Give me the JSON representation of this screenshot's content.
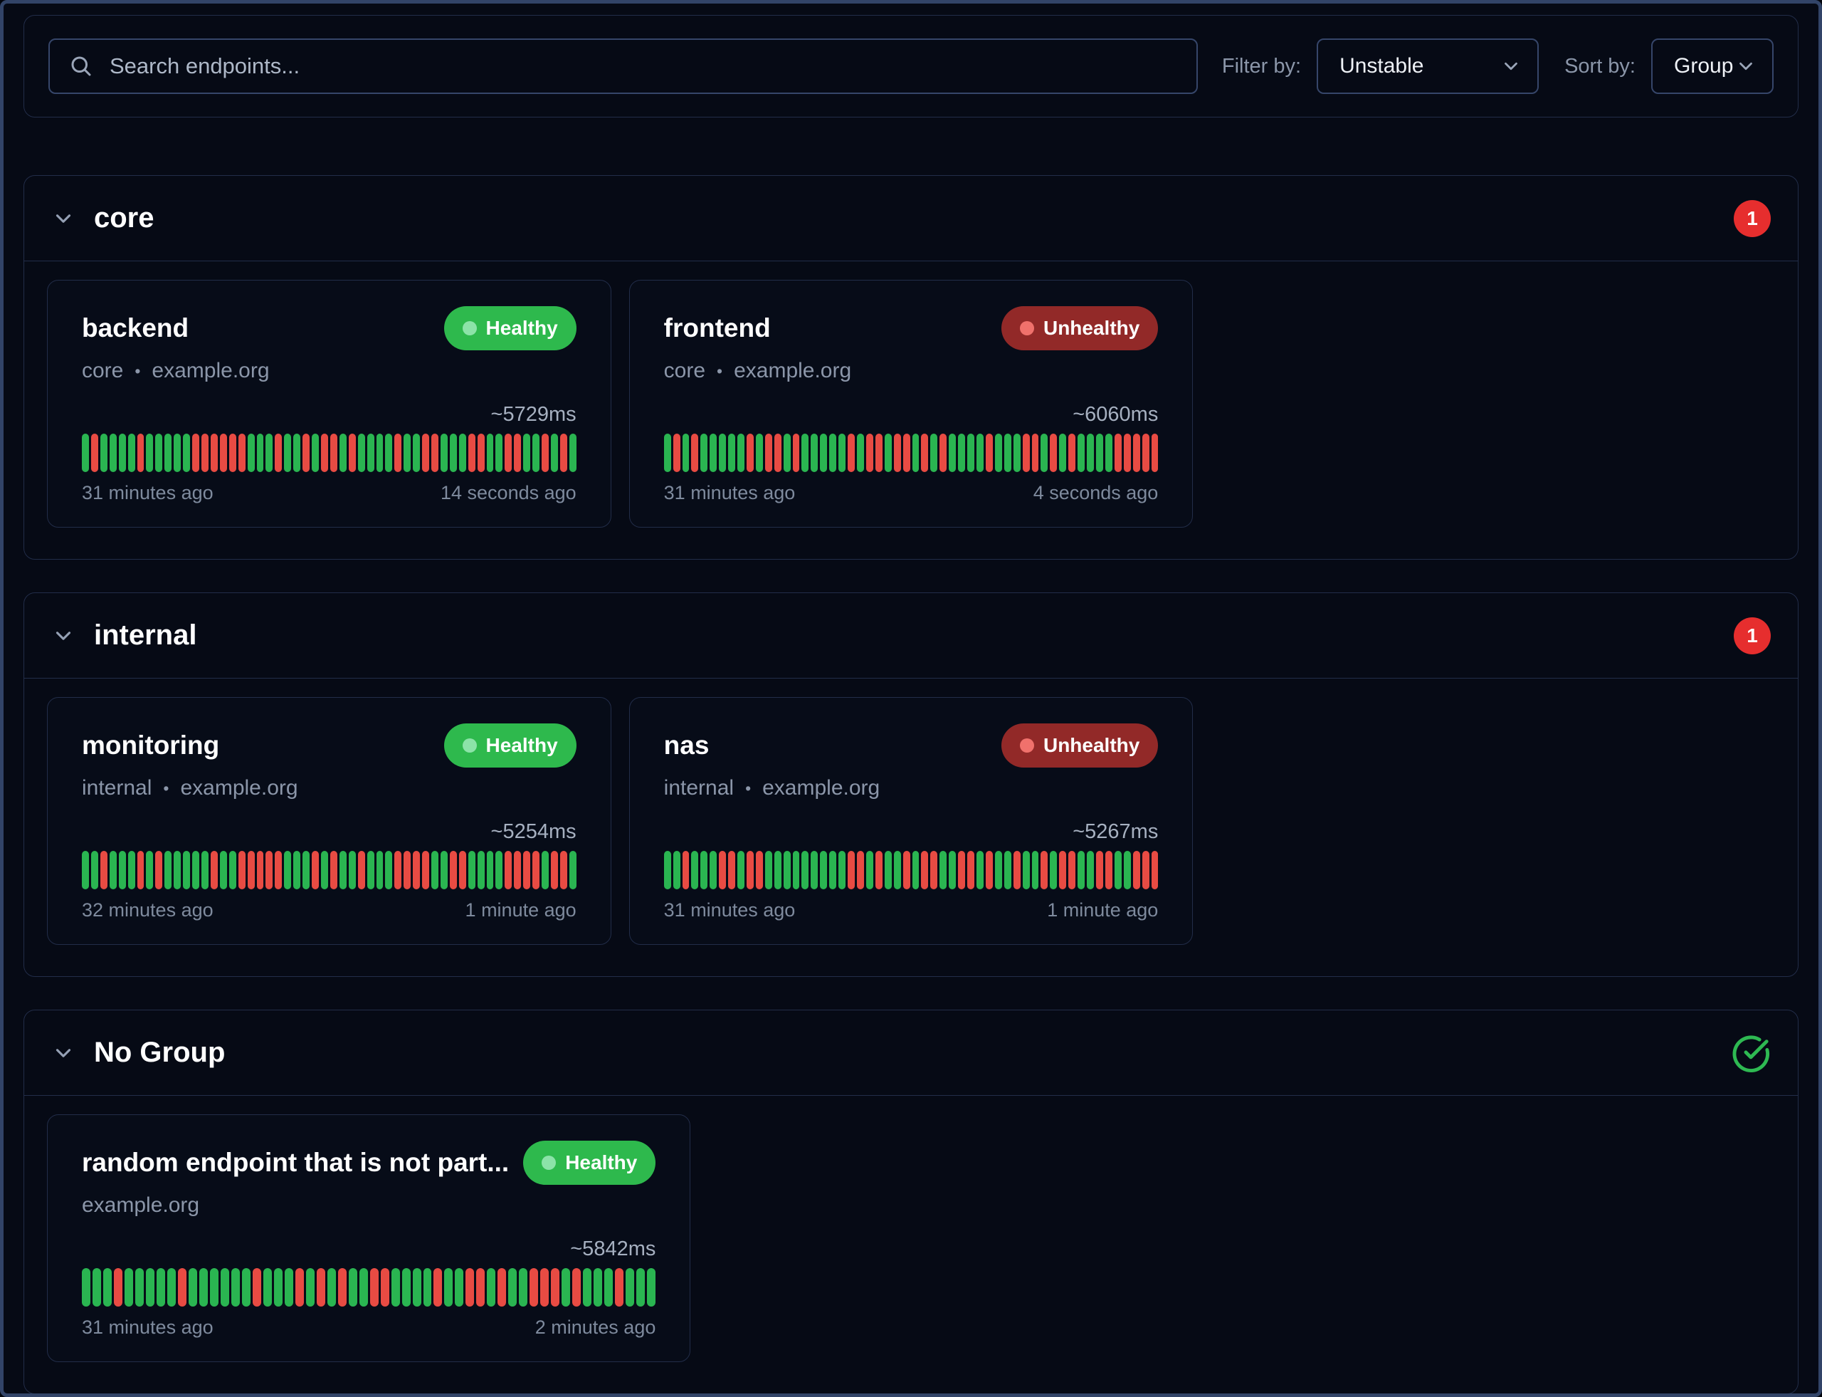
{
  "toolbar": {
    "search_placeholder": "Search endpoints...",
    "filter_label": "Filter by:",
    "filter_value": "Unstable",
    "sort_label": "Sort by:",
    "sort_value": "Group"
  },
  "ui": {
    "separator": "•"
  },
  "colors": {
    "bar_green": "#2ab551",
    "bar_red": "#e84b43",
    "healthy_badge": "#2eb94d",
    "healthy_dot": "#8ce3a8",
    "unhealthy_badge": "#922928",
    "unhealthy_dot": "#f0716c",
    "count_badge": "#e62e2e",
    "check_icon": "#2eb952"
  },
  "groups": [
    {
      "name": "core",
      "status": {
        "type": "count",
        "value": "1"
      },
      "endpoints": [
        {
          "name": "backend",
          "status": "Healthy",
          "group": "core",
          "host": "example.org",
          "response_time": "~5729ms",
          "oldest": "31 minutes ago",
          "newest": "14 seconds ago",
          "bars": "GRGGGGRGGGGGRRRRRRGGGRGGRGRRGRGGGGRGGRRGGGRRGGRRGGRGRG"
        },
        {
          "name": "frontend",
          "status": "Unhealthy",
          "group": "core",
          "host": "example.org",
          "response_time": "~6060ms",
          "oldest": "31 minutes ago",
          "newest": "4 seconds ago",
          "bars": "GRGRGGGGGRGRRGRGGGGGRGRRGRRGRGRGGGGRGGGRRGRGRGGGGRRRRR"
        }
      ]
    },
    {
      "name": "internal",
      "status": {
        "type": "count",
        "value": "1"
      },
      "endpoints": [
        {
          "name": "monitoring",
          "status": "Healthy",
          "group": "internal",
          "host": "example.org",
          "response_time": "~5254ms",
          "oldest": "32 minutes ago",
          "newest": "1 minute ago",
          "bars": "GGRGGGRGRGGGGGRGGRRRRRGGGRGRGGRGGGRRRRGGRRGGGGRRRRGRRG"
        },
        {
          "name": "nas",
          "status": "Unhealthy",
          "group": "internal",
          "host": "example.org",
          "response_time": "~5267ms",
          "oldest": "31 minutes ago",
          "newest": "1 minute ago",
          "bars": "GGRGGGRRGRRGGGGGGGGGRRGRGGRGRRGGRRGRGGRGGRGRRGGRRGGRRR"
        }
      ]
    },
    {
      "name": "No Group",
      "status": {
        "type": "healthy"
      },
      "endpoints": [
        {
          "name": "random endpoint that is not part...",
          "status": "Healthy",
          "group": "",
          "host": "example.org",
          "response_time": "~5842ms",
          "oldest": "31 minutes ago",
          "newest": "2 minutes ago",
          "bars": "GGGRGGGGGRGGGGGGRGGGRGRGRGGRRGGGGRGGRRGRGGRRRGRGGGRGGG"
        }
      ]
    }
  ]
}
